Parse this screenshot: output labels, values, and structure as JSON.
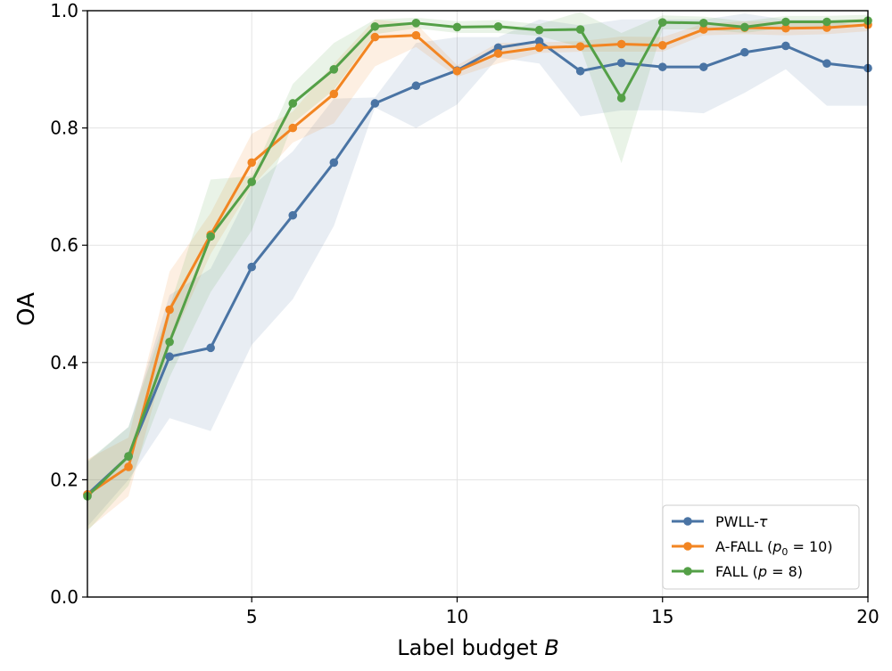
{
  "chart_data": {
    "type": "line",
    "title": "",
    "xlabel": "Label budget",
    "xlabel_var": "B",
    "ylabel": "OA",
    "xlim": [
      1,
      20
    ],
    "ylim": [
      0.0,
      1.0
    ],
    "xticks": [
      5,
      10,
      15,
      20
    ],
    "yticks": [
      0.0,
      0.2,
      0.4,
      0.6,
      0.8,
      1.0
    ],
    "xtick_labels": [
      "5",
      "10",
      "15",
      "20"
    ],
    "ytick_labels": [
      "0.0",
      "0.2",
      "0.4",
      "0.6",
      "0.8",
      "1.0"
    ],
    "grid": true,
    "legend_position": "lower-right",
    "x": [
      1,
      2,
      3,
      4,
      5,
      6,
      7,
      8,
      9,
      10,
      11,
      12,
      13,
      14,
      15,
      16,
      17,
      18,
      19,
      20
    ],
    "series": [
      {
        "name": "PWLL-τ",
        "legend": {
          "prefix": "PWLL-",
          "math": "τ",
          "suffix": ""
        },
        "color": "#4a74a4",
        "values": [
          0.175,
          0.24,
          0.41,
          0.425,
          0.563,
          0.651,
          0.741,
          0.842,
          0.872,
          0.898,
          0.937,
          0.948,
          0.897,
          0.911,
          0.904,
          0.904,
          0.929,
          0.94,
          0.91,
          0.902
        ],
        "lower": [
          0.12,
          0.2,
          0.305,
          0.283,
          0.43,
          0.508,
          0.633,
          0.835,
          0.8,
          0.84,
          0.92,
          0.91,
          0.82,
          0.83,
          0.83,
          0.825,
          0.86,
          0.9,
          0.838,
          0.838
        ],
        "upper": [
          0.23,
          0.29,
          0.515,
          0.56,
          0.7,
          0.76,
          0.85,
          0.852,
          0.945,
          0.955,
          0.955,
          0.985,
          0.975,
          0.985,
          0.985,
          0.985,
          0.995,
          0.985,
          0.985,
          0.97
        ]
      },
      {
        "name": "A-FALL (p0 = 10)",
        "legend": {
          "prefix": "A-FALL (",
          "math": "p",
          "sub": "0",
          "rest": " = 10",
          "suffix": ")"
        },
        "color": "#f28522",
        "values": [
          0.175,
          0.222,
          0.49,
          0.618,
          0.741,
          0.8,
          0.858,
          0.955,
          0.958,
          0.897,
          0.927,
          0.937,
          0.939,
          0.943,
          0.941,
          0.968,
          0.971,
          0.97,
          0.971,
          0.976
        ],
        "lower": [
          0.115,
          0.172,
          0.43,
          0.585,
          0.7,
          0.775,
          0.808,
          0.905,
          0.938,
          0.887,
          0.91,
          0.928,
          0.93,
          0.93,
          0.93,
          0.958,
          0.96,
          0.958,
          0.96,
          0.965
        ],
        "upper": [
          0.235,
          0.272,
          0.555,
          0.655,
          0.79,
          0.828,
          0.91,
          0.985,
          0.978,
          0.907,
          0.945,
          0.946,
          0.948,
          0.956,
          0.955,
          0.978,
          0.982,
          0.982,
          0.982,
          0.987
        ]
      },
      {
        "name": "FALL (p = 8)",
        "legend": {
          "prefix": "FALL (",
          "math": "p",
          "sub": "",
          "rest": " = 8",
          "suffix": ")"
        },
        "color": "#54a047",
        "values": [
          0.172,
          0.24,
          0.435,
          0.615,
          0.708,
          0.842,
          0.9,
          0.973,
          0.979,
          0.972,
          0.973,
          0.967,
          0.968,
          0.851,
          0.98,
          0.979,
          0.972,
          0.981,
          0.981,
          0.983
        ],
        "lower": [
          0.112,
          0.19,
          0.375,
          0.52,
          0.625,
          0.808,
          0.865,
          0.96,
          0.97,
          0.962,
          0.962,
          0.957,
          0.938,
          0.74,
          0.968,
          0.968,
          0.962,
          0.971,
          0.971,
          0.973
        ],
        "upper": [
          0.232,
          0.29,
          0.495,
          0.712,
          0.718,
          0.875,
          0.945,
          0.985,
          0.988,
          0.982,
          0.984,
          0.977,
          0.998,
          0.962,
          0.992,
          0.99,
          0.982,
          0.991,
          0.991,
          0.993
        ]
      }
    ]
  }
}
